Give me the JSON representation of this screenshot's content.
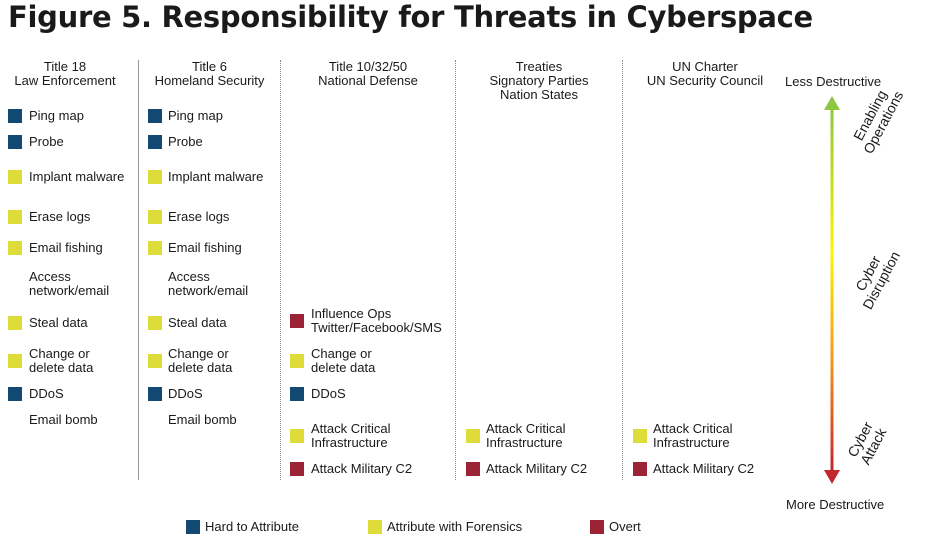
{
  "title": "Figure 5. Responsibility for Threats in Cyberspace",
  "colors": {
    "hard": "#134a73",
    "forensics": "#dedc38",
    "overt": "#9b2335"
  },
  "columns": [
    {
      "header": "Title 18\nLaw Enforcement",
      "items": [
        {
          "label": "Ping map",
          "color": "hard"
        },
        {
          "label": "Probe",
          "color": "hard"
        },
        {
          "label": "Implant malware",
          "color": "forensics"
        },
        {
          "label": "Erase logs",
          "color": "forensics"
        },
        {
          "label": "Email fishing",
          "color": "forensics"
        },
        {
          "label": "Access\nnetwork/email",
          "color": ""
        },
        {
          "label": "Steal data",
          "color": "forensics"
        },
        {
          "label": "Change or\ndelete data",
          "color": "forensics"
        },
        {
          "label": "DDoS",
          "color": "hard"
        },
        {
          "label": "Email bomb",
          "color": ""
        }
      ]
    },
    {
      "header": "Title 6\nHomeland Security",
      "items": [
        {
          "label": "Ping map",
          "color": "hard"
        },
        {
          "label": "Probe",
          "color": "hard"
        },
        {
          "label": "Implant malware",
          "color": "forensics"
        },
        {
          "label": "Erase logs",
          "color": "forensics"
        },
        {
          "label": "Email fishing",
          "color": "forensics"
        },
        {
          "label": "Access\nnetwork/email",
          "color": ""
        },
        {
          "label": "Steal data",
          "color": "forensics"
        },
        {
          "label": "Change or\ndelete data",
          "color": "forensics"
        },
        {
          "label": "DDoS",
          "color": "hard"
        },
        {
          "label": "Email bomb",
          "color": ""
        }
      ]
    },
    {
      "header": "Title 10/32/50\nNational Defense",
      "items": [
        {
          "label": "Influence Ops\nTwitter/Facebook/SMS",
          "color": "overt"
        },
        {
          "label": "Change or\ndelete data",
          "color": "forensics"
        },
        {
          "label": "DDoS",
          "color": "hard"
        },
        {
          "label": "Attack Critical\nInfrastructure",
          "color": "forensics"
        },
        {
          "label": "Attack Military C2",
          "color": "overt"
        }
      ]
    },
    {
      "header": "Treaties\nSignatory Parties\nNation States",
      "items": [
        {
          "label": "Attack Critical\nInfrastructure",
          "color": "forensics"
        },
        {
          "label": "Attack Military C2",
          "color": "overt"
        }
      ]
    },
    {
      "header": "UN Charter\nUN Security Council",
      "items": [
        {
          "label": "Attack Critical\nInfrastructure",
          "color": "forensics"
        },
        {
          "label": "Attack Military C2",
          "color": "overt"
        }
      ]
    }
  ],
  "scale": {
    "top_label": "Less Destructive",
    "bottom_label": "More Destructive",
    "zones": [
      "Enabling\nOperations",
      "Cyber\nDisruption",
      "Cyber\nAttack"
    ],
    "gradient_colors": [
      "#8dc63f",
      "#fff200",
      "#f7941d",
      "#c1272d"
    ]
  },
  "legend": [
    {
      "label": "Hard to Attribute",
      "color": "hard"
    },
    {
      "label": "Attribute with Forensics",
      "color": "forensics"
    },
    {
      "label": "Overt",
      "color": "overt"
    }
  ]
}
